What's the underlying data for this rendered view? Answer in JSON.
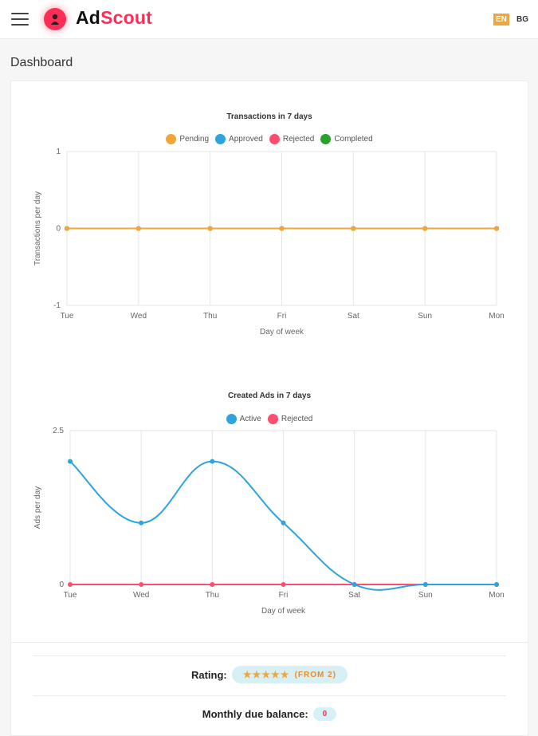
{
  "header": {
    "logo_ad": "Ad",
    "logo_scout": "Scout",
    "lang_en": "EN",
    "lang_bg": "BG"
  },
  "page": {
    "title": "Dashboard"
  },
  "colors": {
    "pending": "#f0a63a",
    "approved": "#2ea3dc",
    "rejected": "#ff4d6d",
    "completed": "#2ca02c",
    "active": "#2ea3dc",
    "brand": "#ff2d55"
  },
  "chart_data": [
    {
      "type": "line",
      "title": "Transactions in 7 days",
      "xlabel": "Day of week",
      "ylabel": "Transactions per day",
      "categories": [
        "Tue",
        "Wed",
        "Thu",
        "Fri",
        "Sat",
        "Sun",
        "Mon"
      ],
      "ylim": [
        -1,
        1
      ],
      "yticks": [
        "1",
        "0",
        "-1"
      ],
      "grid": true,
      "legend_position": "top",
      "series": [
        {
          "name": "Pending",
          "values": [
            0,
            0,
            0,
            0,
            0,
            0,
            0
          ],
          "color": "#f0a63a"
        },
        {
          "name": "Approved",
          "values": [
            0,
            0,
            0,
            0,
            0,
            0,
            0
          ],
          "color": "#2ea3dc"
        },
        {
          "name": "Rejected",
          "values": [
            0,
            0,
            0,
            0,
            0,
            0,
            0
          ],
          "color": "#ff4d6d"
        },
        {
          "name": "Completed",
          "values": [
            0,
            0,
            0,
            0,
            0,
            0,
            0
          ],
          "color": "#2ca02c"
        }
      ]
    },
    {
      "type": "line",
      "title": "Created Ads in 7 days",
      "xlabel": "Day of week",
      "ylabel": "Ads per day",
      "categories": [
        "Tue",
        "Wed",
        "Thu",
        "Fri",
        "Sat",
        "Sun",
        "Mon"
      ],
      "ylim": [
        0,
        2.5
      ],
      "yticks": [
        "2.5",
        "0"
      ],
      "grid": true,
      "legend_position": "top",
      "series": [
        {
          "name": "Active",
          "values": [
            2,
            1,
            2,
            1,
            0,
            0,
            0
          ],
          "color": "#2ea3dc"
        },
        {
          "name": "Rejected",
          "values": [
            0,
            0,
            0,
            0,
            0,
            0,
            0
          ],
          "color": "#ff4d6d"
        }
      ]
    }
  ],
  "stats": {
    "rating_label": "Rating:",
    "rating_stars": "★★★★★",
    "rating_from": "(FROM 2)",
    "balance_label": "Monthly due balance:",
    "balance_value": "0"
  }
}
